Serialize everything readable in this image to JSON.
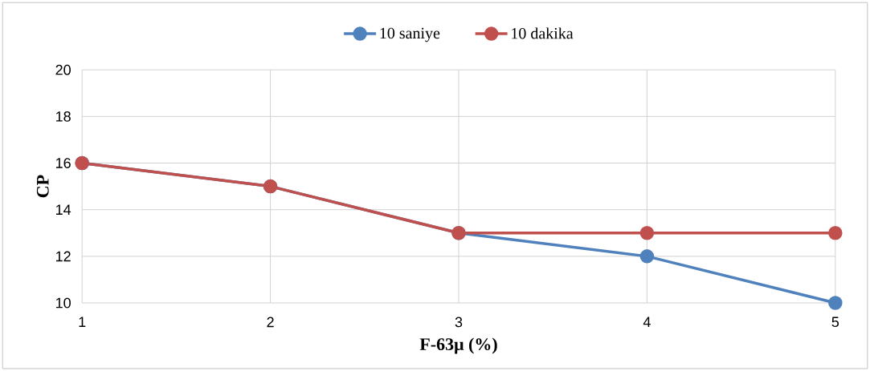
{
  "chart_data": {
    "type": "line",
    "xlabel": "F-63μ (%)",
    "ylabel": "CP",
    "x": [
      1,
      2,
      3,
      4,
      5
    ],
    "series": [
      {
        "name": "10 saniye",
        "color": "#4f81bd",
        "values": [
          16,
          15,
          13,
          12,
          10
        ]
      },
      {
        "name": "10 dakika",
        "color": "#c0504d",
        "values": [
          16,
          15,
          13,
          13,
          13
        ]
      }
    ],
    "xlim": [
      1,
      5
    ],
    "xticks": [
      1,
      2,
      3,
      4,
      5
    ],
    "ylim": [
      10,
      20
    ],
    "yticks": [
      10,
      12,
      14,
      16,
      18,
      20
    ],
    "grid": true,
    "legend": "top",
    "marker": "circle",
    "line_style": "solid"
  }
}
